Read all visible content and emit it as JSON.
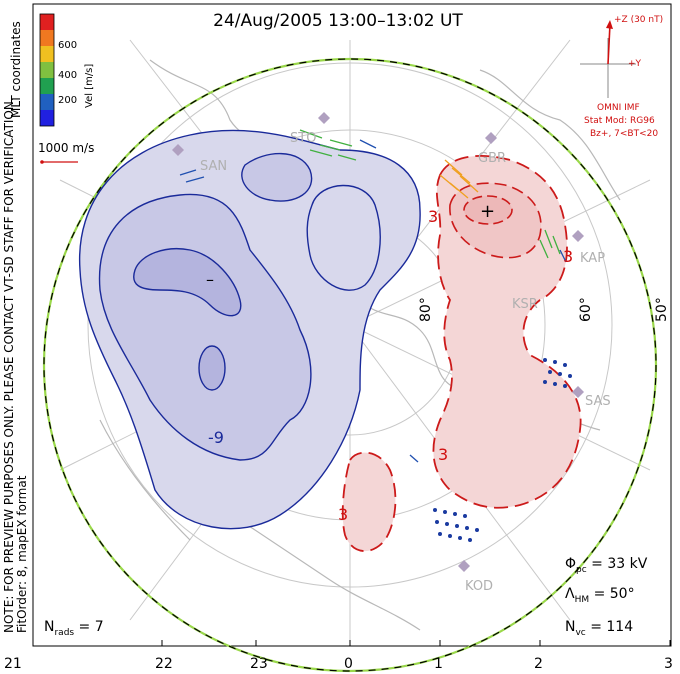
{
  "title": "24/Aug/2005 13:00–13:02 UT",
  "side_note": "NOTE: FOR PREVIEW PURPOSES ONLY. PLEASE CONTACT VT-SD STAFF FOR VERIFICATION.",
  "fit_order": "FitOrder: 8, mapEX format",
  "colorbar": {
    "label": "Vel [m/s]",
    "coord_label": "MLT coordinates",
    "ticks": [
      "600",
      "400",
      "200"
    ],
    "colors": [
      "#e02020",
      "#f07820",
      "#f0c020",
      "#80c040",
      "#20a050",
      "#2060c0",
      "#2020e0"
    ]
  },
  "scale_vector_label": "1000 m/s",
  "imf": {
    "z_label": "+Z (30 nT)",
    "y_label": "+Y",
    "source": "OMNI IMF",
    "stat_mod": "Stat Mod: RG96",
    "condition": "Bz+, 7<BT<20"
  },
  "stats": {
    "phi_symbol": "Φ",
    "phi_sub": "pc",
    "phi_value": " = 33 kV",
    "lambda_symbol": "Λ",
    "lambda_sub": "HM",
    "lambda_value": " = 50°",
    "nvc_symbol": "N",
    "nvc_sub": "vc",
    "nvc_value": " = 114",
    "nrads_symbol": "N",
    "nrads_sub": "rads",
    "nrads_value": " = 7"
  },
  "mlt_ticks": [
    "21",
    "22",
    "23",
    "0",
    "1",
    "2",
    "3"
  ],
  "lat_labels": [
    "80°",
    "60°",
    "50°"
  ],
  "contour_labels": {
    "neg": [
      "-9"
    ],
    "pos": [
      "3",
      "3",
      "3",
      "3"
    ],
    "min_marker": "–",
    "max_marker": "+"
  },
  "radar_stations": [
    "SAN",
    "STO",
    "GBR",
    "KAP",
    "SAS",
    "KOD",
    "KSR"
  ],
  "colors": {
    "neg_cell": "#d8d8ec",
    "pos_cell": "#f4d6d6",
    "neg_line": "#1a2a9a",
    "pos_line": "#cc1a1a"
  }
}
